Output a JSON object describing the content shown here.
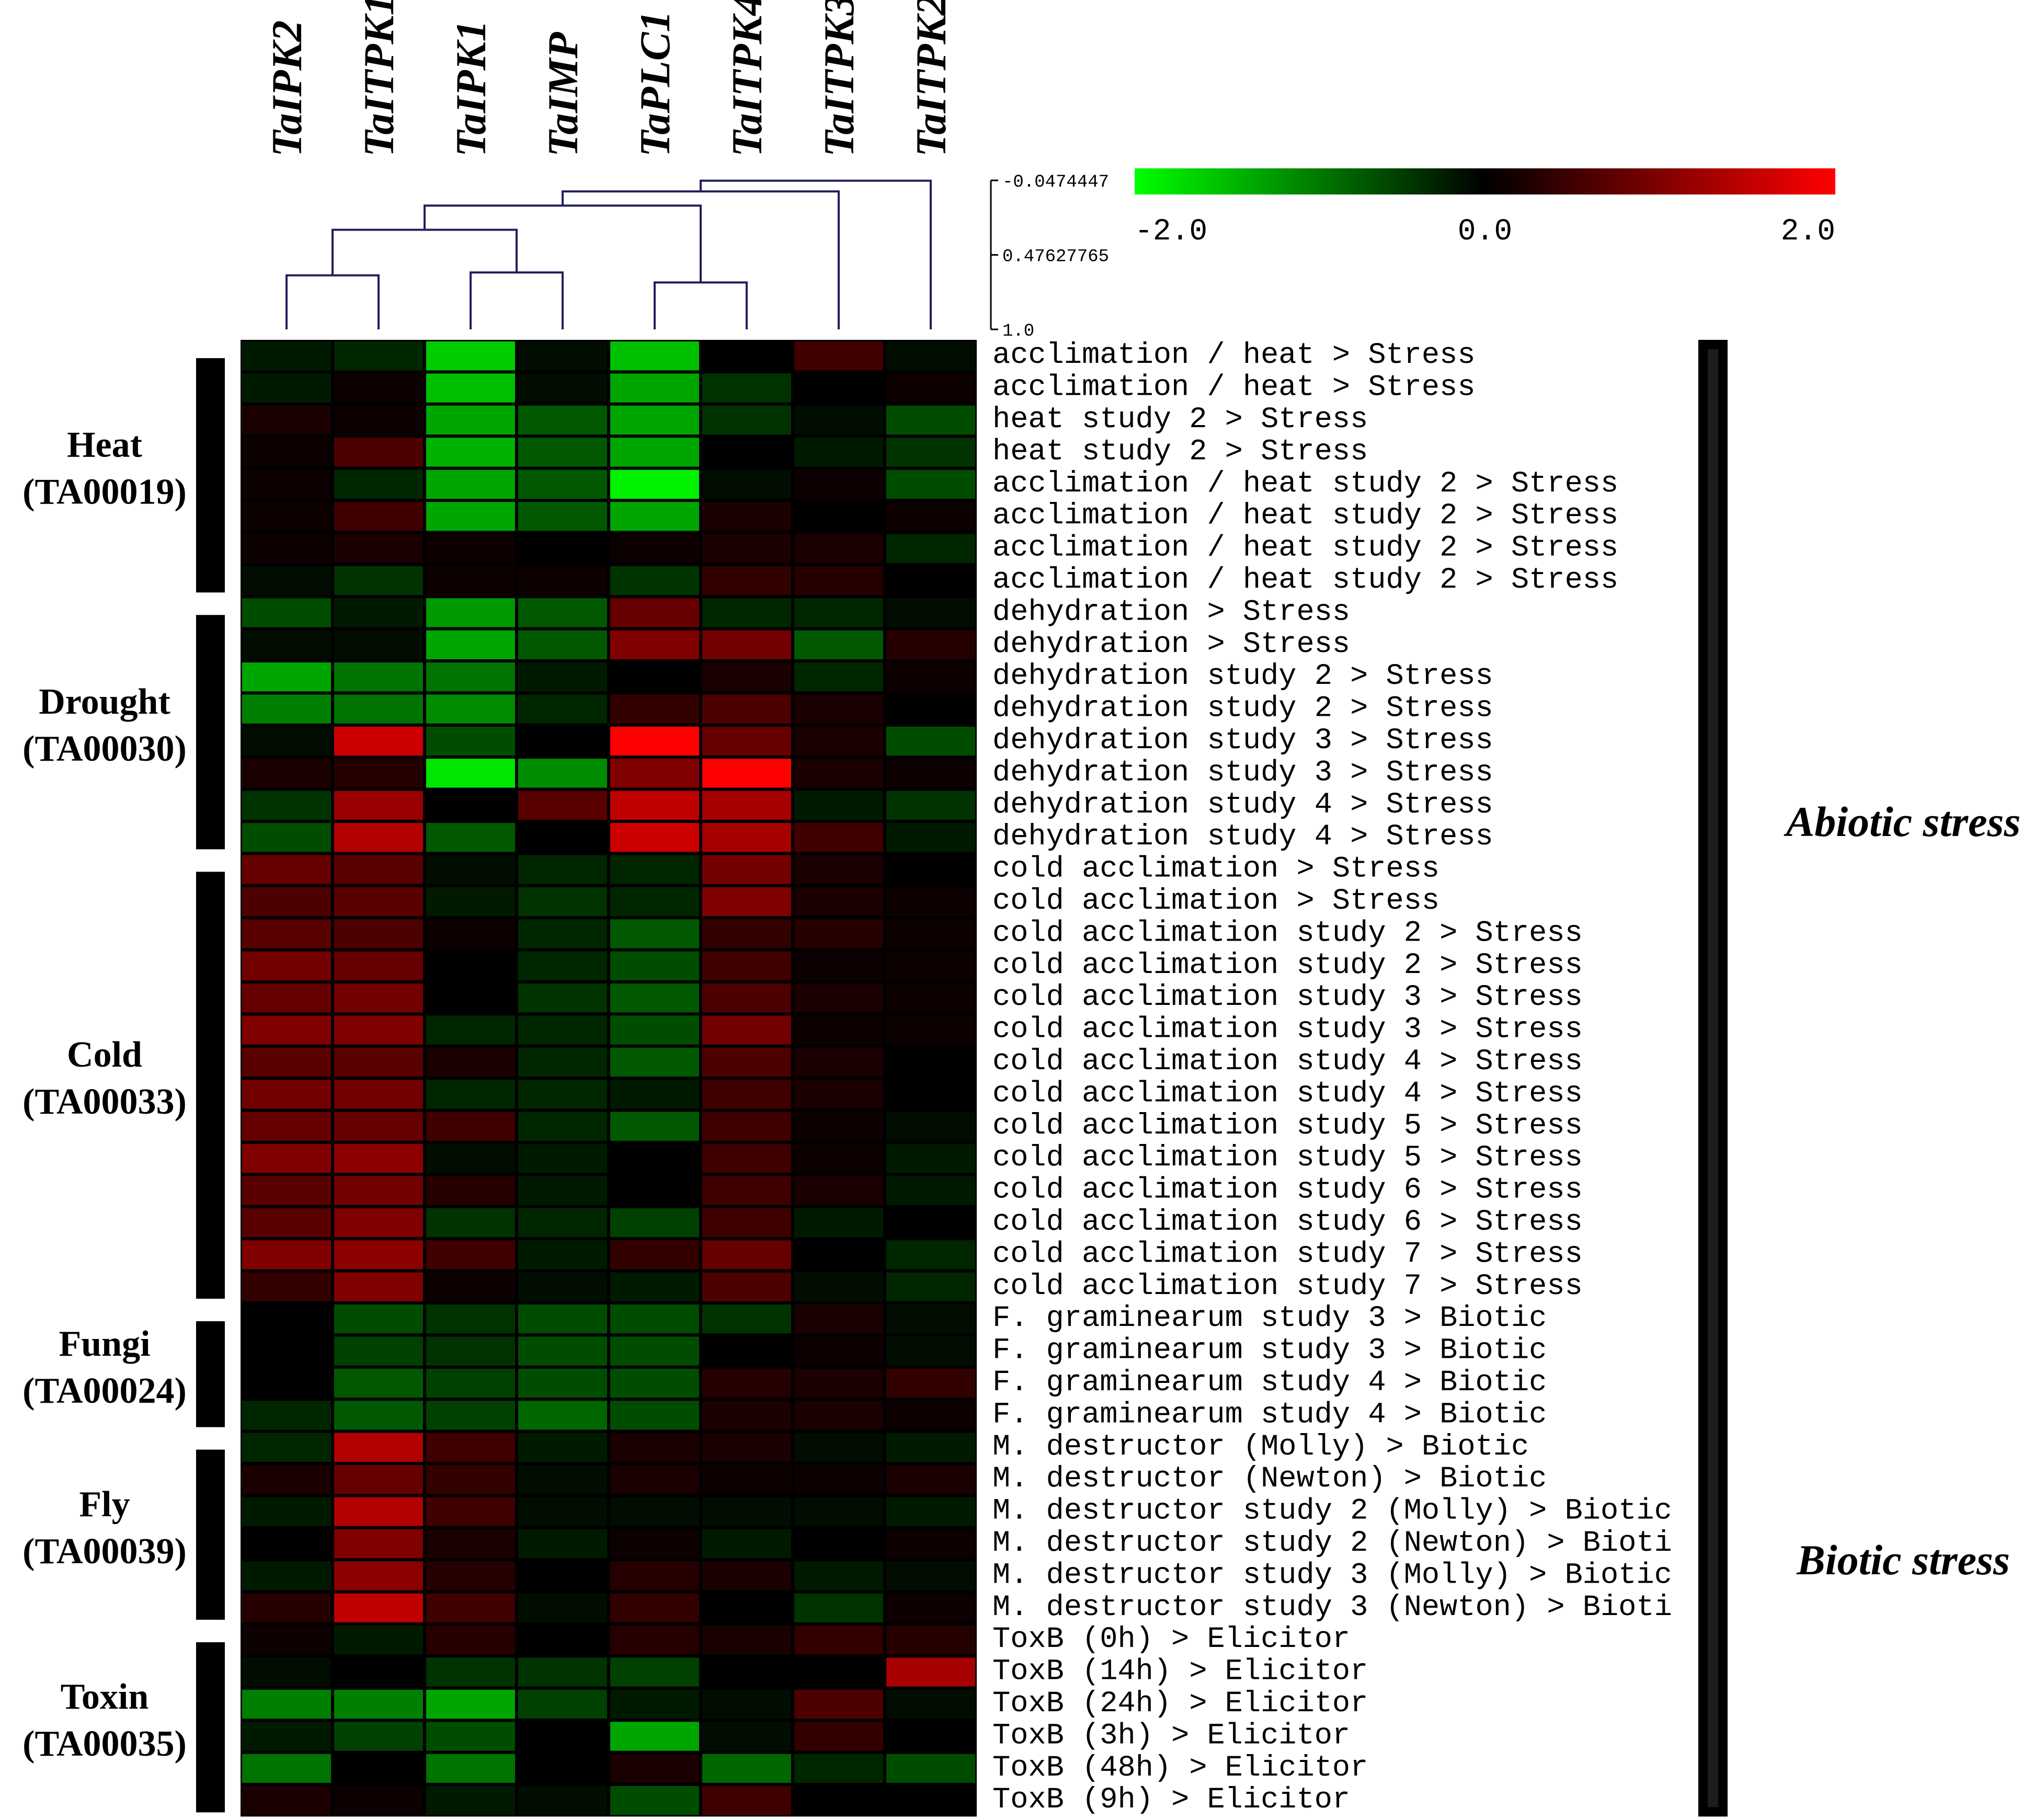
{
  "chart_data": {
    "type": "heatmap",
    "columns": [
      "TaIPK2",
      "TaITPK1",
      "TaIPK1",
      "TaIMP",
      "TaPLC1",
      "TaITPK4",
      "TaITPK3",
      "TaITPK2"
    ],
    "rows": [
      "acclimation / heat > Stress",
      "acclimation / heat > Stress",
      "heat study 2 > Stress",
      "heat study 2 > Stress",
      "acclimation / heat study 2 > Stress",
      "acclimation / heat study 2 > Stress",
      "acclimation / heat study 2 > Stress",
      "acclimation / heat study 2 > Stress",
      "dehydration > Stress",
      "dehydration > Stress",
      "dehydration study 2 > Stress",
      "dehydration study 2 > Stress",
      "dehydration study 3 > Stress",
      "dehydration study 3 > Stress",
      "dehydration study 4 > Stress",
      "dehydration study 4 > Stress",
      "cold acclimation > Stress",
      "cold acclimation > Stress",
      "cold acclimation study 2 > Stress",
      "cold acclimation study 2 > Stress",
      "cold acclimation study 3 > Stress",
      "cold acclimation study 3 > Stress",
      "cold acclimation study 4 > Stress",
      "cold acclimation study 4 > Stress",
      "cold acclimation study 5 > Stress",
      "cold acclimation study 5 > Stress",
      "cold acclimation study 6 > Stress",
      "cold acclimation study 6 > Stress",
      "cold acclimation study 7 > Stress",
      "cold acclimation study 7 > Stress",
      "F. graminearum study 3 > Biotic",
      "F. graminearum study 3 > Biotic",
      "F. graminearum study 4 > Biotic",
      "F. graminearum study 4 > Biotic",
      "M. destructor (Molly) > Biotic",
      "M. destructor (Newton) > Biotic",
      "M. destructor study 2 (Molly) > Biotic",
      "M. destructor study 2 (Newton) > Bioti",
      "M. destructor study 3 (Molly) > Biotic",
      "M. destructor study 3 (Newton) > Bioti",
      "ToxB (0h) > Elicitor",
      "ToxB (14h) > Elicitor",
      "ToxB (24h) > Elicitor",
      "ToxB (3h) > Elicitor",
      "ToxB (48h) > Elicitor",
      "ToxB (9h) > Elicitor"
    ],
    "values": [
      [
        -0.2,
        -0.3,
        -1.6,
        -0.1,
        -1.5,
        0.0,
        0.5,
        -0.1
      ],
      [
        -0.2,
        0.1,
        -1.5,
        -0.1,
        -1.3,
        -0.4,
        0.0,
        0.1
      ],
      [
        0.2,
        0.1,
        -1.3,
        -0.7,
        -1.3,
        -0.4,
        -0.1,
        -0.6
      ],
      [
        0.1,
        0.6,
        -1.4,
        -0.7,
        -1.3,
        0.0,
        -0.2,
        -0.4
      ],
      [
        0.1,
        -0.3,
        -1.3,
        -0.7,
        -1.9,
        -0.1,
        0.1,
        -0.6
      ],
      [
        0.1,
        0.5,
        -1.3,
        -0.7,
        -1.3,
        0.2,
        0.0,
        0.1
      ],
      [
        0.1,
        0.2,
        0.1,
        0.0,
        0.1,
        0.2,
        0.2,
        -0.3
      ],
      [
        -0.1,
        -0.4,
        0.1,
        0.1,
        -0.4,
        0.4,
        0.3,
        0.0
      ],
      [
        -0.6,
        -0.2,
        -1.2,
        -0.7,
        0.8,
        -0.3,
        -0.3,
        -0.1
      ],
      [
        -0.1,
        -0.1,
        -1.3,
        -0.7,
        1.0,
        0.9,
        -0.7,
        0.3
      ],
      [
        -1.3,
        -0.9,
        -0.9,
        -0.2,
        0.0,
        0.2,
        -0.3,
        0.1
      ],
      [
        -1.0,
        -0.9,
        -1.1,
        -0.3,
        0.4,
        0.6,
        0.2,
        0.0
      ],
      [
        -0.1,
        1.6,
        -0.6,
        0.0,
        2.0,
        0.8,
        0.2,
        -0.6
      ],
      [
        0.2,
        0.3,
        -1.8,
        -1.1,
        1.0,
        2.0,
        0.2,
        0.1
      ],
      [
        -0.4,
        1.2,
        0.0,
        0.7,
        1.5,
        1.3,
        -0.2,
        -0.4
      ],
      [
        -0.6,
        1.4,
        -0.7,
        0.0,
        1.6,
        1.3,
        0.5,
        -0.2
      ],
      [
        0.8,
        0.7,
        -0.1,
        -0.3,
        -0.3,
        0.9,
        0.2,
        0.0
      ],
      [
        0.6,
        0.7,
        -0.2,
        -0.4,
        -0.3,
        1.0,
        0.2,
        0.1
      ],
      [
        0.7,
        0.6,
        0.1,
        -0.3,
        -0.7,
        0.4,
        0.3,
        0.1
      ],
      [
        0.9,
        0.8,
        0.0,
        -0.3,
        -0.6,
        0.5,
        0.1,
        0.1
      ],
      [
        0.8,
        0.9,
        0.0,
        -0.4,
        -0.7,
        0.6,
        0.2,
        0.1
      ],
      [
        1.0,
        1.0,
        -0.3,
        -0.3,
        -0.6,
        0.9,
        0.1,
        0.1
      ],
      [
        0.7,
        0.7,
        0.2,
        -0.3,
        -0.7,
        0.6,
        0.2,
        0.0
      ],
      [
        0.9,
        0.9,
        -0.3,
        -0.3,
        -0.2,
        0.5,
        0.2,
        0.0
      ],
      [
        0.8,
        0.8,
        0.5,
        -0.3,
        -0.7,
        0.5,
        0.1,
        -0.1
      ],
      [
        1.0,
        1.1,
        -0.1,
        -0.2,
        0.0,
        0.5,
        0.1,
        -0.2
      ],
      [
        0.7,
        0.9,
        0.3,
        -0.2,
        0.0,
        0.5,
        0.2,
        -0.2
      ],
      [
        0.7,
        1.0,
        -0.4,
        -0.3,
        -0.5,
        0.5,
        -0.2,
        0.0
      ],
      [
        1.0,
        1.1,
        0.5,
        -0.2,
        0.4,
        0.8,
        0.0,
        -0.3
      ],
      [
        0.4,
        1.0,
        0.1,
        -0.1,
        -0.2,
        0.6,
        -0.1,
        -0.3
      ],
      [
        0.0,
        -0.6,
        -0.4,
        -0.6,
        -0.6,
        -0.4,
        0.2,
        -0.1
      ],
      [
        0.0,
        -0.5,
        -0.4,
        -0.6,
        -0.6,
        0.0,
        0.1,
        -0.1
      ],
      [
        0.0,
        -0.7,
        -0.5,
        -0.6,
        -0.6,
        0.3,
        0.2,
        0.4
      ],
      [
        -0.3,
        -0.7,
        -0.5,
        -0.8,
        -0.6,
        0.2,
        0.2,
        0.1
      ],
      [
        -0.3,
        1.4,
        0.5,
        -0.2,
        0.2,
        0.2,
        -0.1,
        -0.2
      ],
      [
        0.2,
        0.8,
        0.4,
        -0.1,
        0.2,
        0.1,
        0.1,
        0.2
      ],
      [
        -0.2,
        1.4,
        0.5,
        -0.1,
        -0.1,
        -0.1,
        -0.1,
        -0.2
      ],
      [
        0.0,
        1.0,
        0.2,
        -0.2,
        0.1,
        -0.2,
        0.0,
        0.1
      ],
      [
        -0.2,
        1.1,
        0.3,
        0.0,
        0.3,
        0.2,
        -0.2,
        -0.1
      ],
      [
        0.3,
        1.5,
        0.5,
        -0.1,
        0.4,
        0.0,
        -0.4,
        0.1
      ],
      [
        0.1,
        -0.2,
        0.3,
        0.0,
        0.3,
        0.2,
        0.4,
        0.3
      ],
      [
        -0.1,
        0.0,
        -0.4,
        -0.4,
        -0.5,
        0.0,
        0.0,
        1.3
      ],
      [
        -1.0,
        -1.0,
        -1.3,
        -0.5,
        -0.2,
        -0.1,
        0.6,
        -0.1
      ],
      [
        -0.2,
        -0.5,
        -0.6,
        0.0,
        -1.3,
        -0.1,
        0.4,
        0.0
      ],
      [
        -0.9,
        0.0,
        -0.9,
        0.0,
        0.2,
        -0.8,
        -0.3,
        -0.6
      ],
      [
        0.2,
        0.1,
        -0.2,
        -0.1,
        -0.6,
        0.5,
        0.0,
        0.0
      ]
    ],
    "color_scale": {
      "min": -2.0,
      "mid": 0.0,
      "max": 2.0,
      "min_color": "#00ff00",
      "mid_color": "#000000",
      "max_color": "#ff0000",
      "tick_labels": [
        "-2.0",
        "0.0",
        "2.0"
      ]
    },
    "dendrogram_scale_labels": [
      "-0.0474447",
      "0.47627765",
      "1.0"
    ],
    "dendrogram": [
      {
        "a": 0,
        "b": 1,
        "height": 0.62
      },
      {
        "a": 2,
        "b": 3,
        "height": 0.6
      },
      {
        "a": 4,
        "b": 5,
        "height": 0.67
      },
      {
        "a": "m0",
        "b": "m1",
        "height": 0.3
      },
      {
        "a": "m3",
        "b": "m2",
        "height": 0.13
      },
      {
        "a": "m4",
        "b": 6,
        "height": 0.03
      },
      {
        "a": "m5",
        "b": 7,
        "height": -0.045
      }
    ],
    "row_groups": [
      {
        "name": "Heat",
        "id": "(TA00019)",
        "rows_start": 0,
        "rows_end": 7
      },
      {
        "name": "Drought",
        "id": "(TA00030)",
        "rows_start": 8,
        "rows_end": 15
      },
      {
        "name": "Cold",
        "id": "(TA00033)",
        "rows_start": 16,
        "rows_end": 29
      },
      {
        "name": "Fungi",
        "id": "(TA00024)",
        "rows_start": 30,
        "rows_end": 33
      },
      {
        "name": "Fly",
        "id": "(TA00039)",
        "rows_start": 34,
        "rows_end": 39
      },
      {
        "name": "Toxin",
        "id": "(TA00035)",
        "rows_start": 40,
        "rows_end": 45
      }
    ],
    "side_labels": [
      {
        "text": "Abiotic stress",
        "rows_start": 0,
        "rows_end": 29
      },
      {
        "text": "Biotic stress",
        "rows_start": 30,
        "rows_end": 45
      }
    ]
  }
}
